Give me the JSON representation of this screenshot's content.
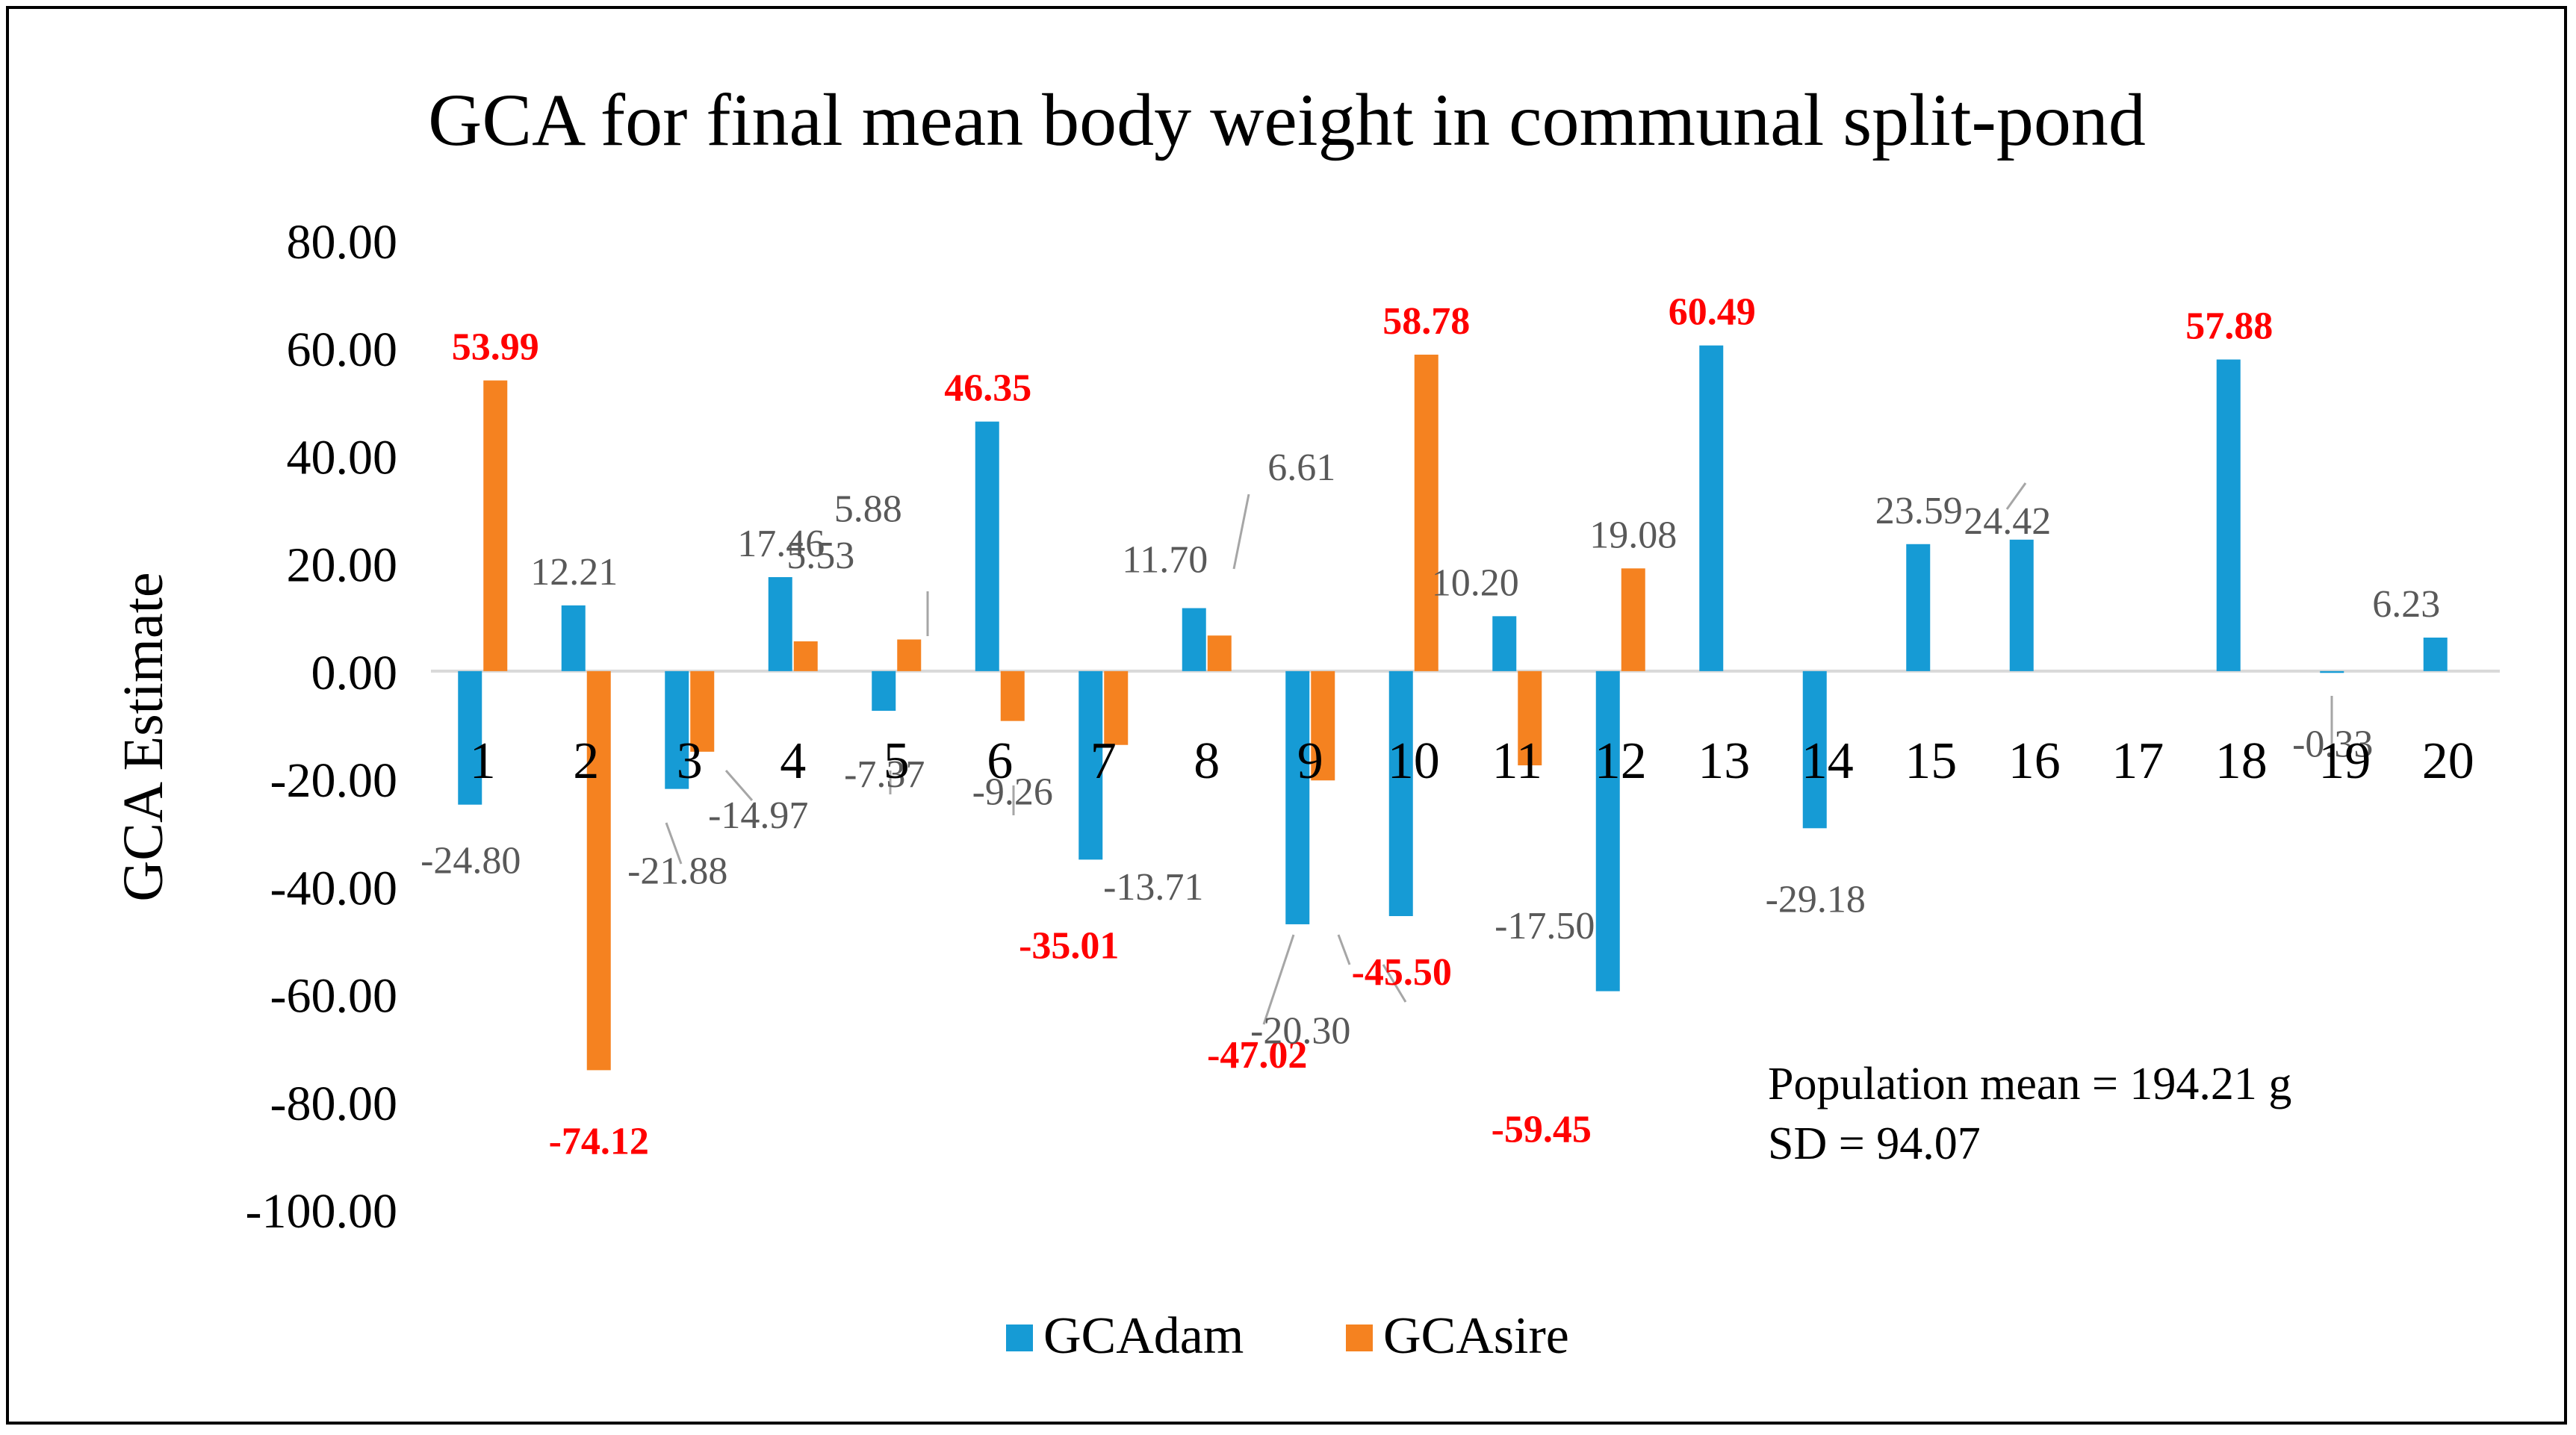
{
  "chart_data": {
    "type": "bar",
    "title": "GCA for final mean body weight in communal split-pond",
    "xlabel": "",
    "ylabel": "GCA Estimate",
    "ylim": [
      -100,
      80
    ],
    "yticks": [
      "80.00",
      "60.00",
      "40.00",
      "20.00",
      "0.00",
      "-20.00",
      "-40.00",
      "-60.00",
      "-80.00",
      "-100.00"
    ],
    "categories": [
      "1",
      "2",
      "3",
      "4",
      "5",
      "6",
      "7",
      "8",
      "9",
      "10",
      "11",
      "12",
      "13",
      "14",
      "15",
      "16",
      "17",
      "18",
      "19",
      "20"
    ],
    "series": [
      {
        "name": "GCAdam",
        "color": "#169BD5",
        "values": [
          -24.8,
          12.21,
          -21.88,
          17.46,
          -7.37,
          46.35,
          -35.01,
          11.7,
          -47.02,
          -45.5,
          10.2,
          -59.45,
          60.49,
          -29.18,
          23.59,
          24.42,
          null,
          57.88,
          -0.33,
          6.23
        ],
        "labels": [
          "-24.80",
          "12.21",
          "-21.88",
          "17.46",
          "-7.37",
          "46.35",
          "-35.01",
          "11.70",
          "-47.02",
          "-45.50",
          "10.20",
          "-59.45",
          "60.49",
          "-29.18",
          "23.59",
          "24.42",
          "",
          "57.88",
          "-0.33",
          "6.23"
        ],
        "highlight": [
          false,
          false,
          false,
          false,
          false,
          true,
          true,
          false,
          true,
          true,
          false,
          true,
          true,
          false,
          false,
          false,
          false,
          true,
          false,
          false
        ]
      },
      {
        "name": "GCAsire",
        "color": "#F58220",
        "values": [
          53.99,
          -74.12,
          -14.97,
          5.53,
          5.88,
          -9.26,
          -13.71,
          6.61,
          -20.3,
          58.78,
          -17.5,
          19.08,
          null,
          null,
          null,
          null,
          null,
          null,
          null,
          null
        ],
        "labels": [
          "53.99",
          "-74.12",
          "-14.97",
          "5.53",
          "5.88",
          "-9.26",
          "-13.71",
          "6.61",
          "-20.30",
          "58.78",
          "-17.50",
          "19.08",
          "",
          "",
          "",
          "",
          "",
          "",
          "",
          ""
        ],
        "highlight": [
          true,
          true,
          false,
          false,
          false,
          false,
          false,
          false,
          false,
          true,
          false,
          false,
          false,
          false,
          false,
          false,
          false,
          false,
          false,
          false
        ]
      }
    ],
    "legend": [
      "GCAdam",
      "GCAsire"
    ],
    "legend_position": "bottom",
    "annotations": [
      "Population mean = 194.21 g",
      "SD = 94.07"
    ],
    "highlight_color": "#FF0000"
  }
}
